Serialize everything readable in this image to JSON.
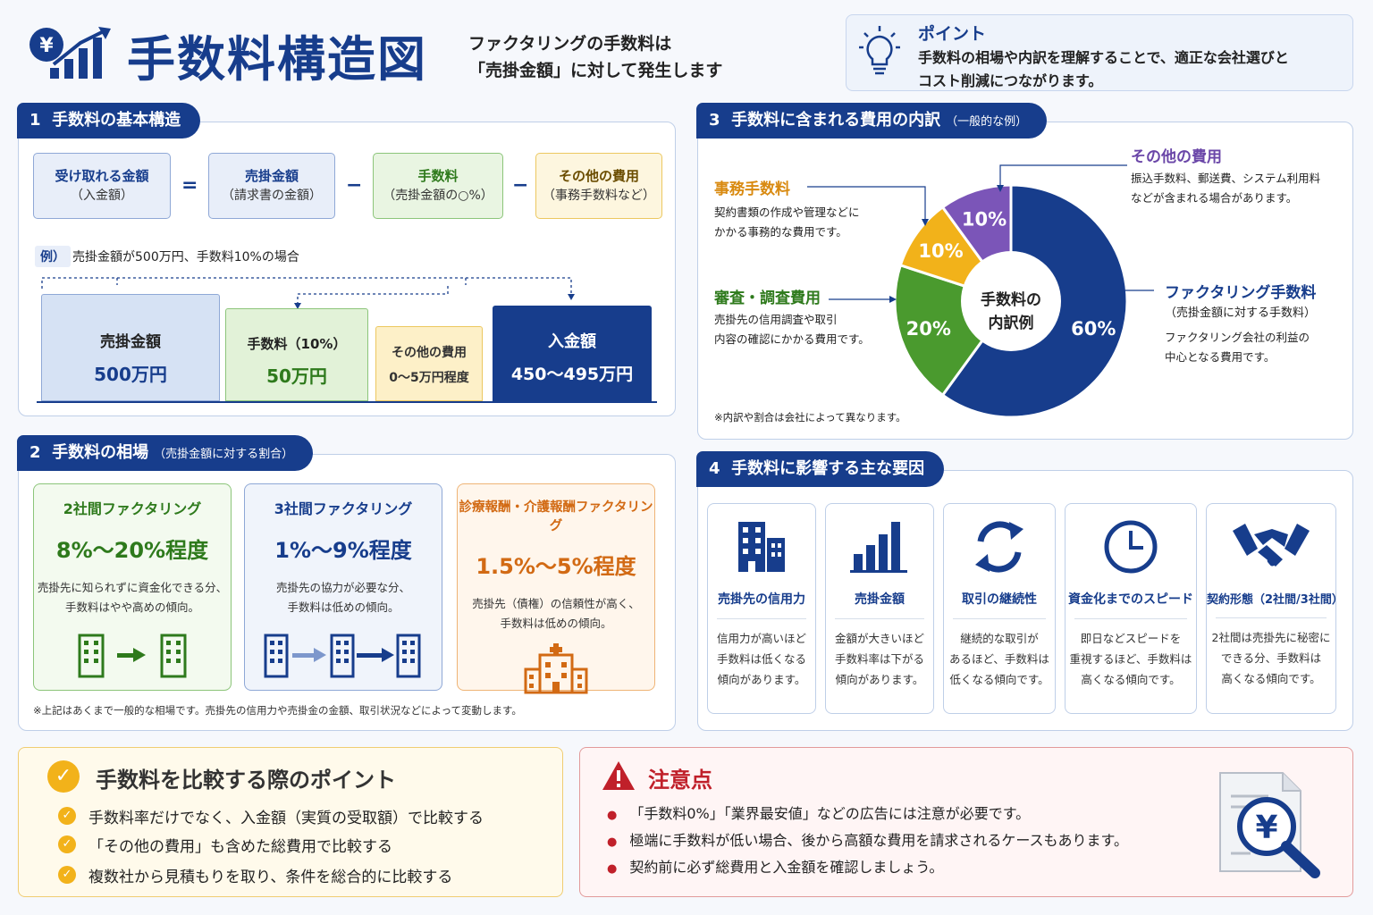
{
  "header": {
    "title": "手数料構造図",
    "subtitle_line1": "ファクタリングの手数料は",
    "subtitle_line2": "「売掛金額」に対して発生します"
  },
  "point": {
    "title": "ポイント",
    "line1": "手数料の相場や内訳を理解することで、適正な会社選びと",
    "line2": "コスト削減につながります。"
  },
  "s1": {
    "num": "1",
    "title": "手数料の基本構造",
    "boxes": [
      {
        "l1": "受け取れる金額",
        "l2": "（入金額）"
      },
      {
        "l1": "売掛金額",
        "l2": "（請求書の金額）"
      },
      {
        "l1": "手数料",
        "l2": "（売掛金額の○%）"
      },
      {
        "l1": "その他の費用",
        "l2": "（事務手数料など）"
      }
    ],
    "ops": [
      "=",
      "−",
      "−"
    ],
    "ex_tag": "例）",
    "example": "売掛金額が500万円、手数料10%の場合",
    "bars": [
      {
        "label": "売掛金額",
        "value": "500万円"
      },
      {
        "label": "手数料（10%）",
        "value": "50万円"
      },
      {
        "label": "その他の費用",
        "value": "0〜5万円程度"
      },
      {
        "label": "入金額",
        "value": "450〜495万円"
      }
    ]
  },
  "s2": {
    "num": "2",
    "title": "手数料の相場",
    "sub": "（売掛金額に対する割合）",
    "cards": [
      {
        "title": "2社間ファクタリング",
        "rate": "8%〜20%程度",
        "d1": "売掛先に知られずに資金化できる分、",
        "d2": "手数料はやや高めの傾向。"
      },
      {
        "title": "3社間ファクタリング",
        "rate": "1%〜9%程度",
        "d1": "売掛先の協力が必要な分、",
        "d2": "手数料は低めの傾向。"
      },
      {
        "title": "診療報酬・介護報酬ファクタリング",
        "rate": "1.5%〜5%程度",
        "d1": "売掛先（債権）の信頼性が高く、",
        "d2": "手数料は低めの傾向。"
      }
    ],
    "note": "※上記はあくまで一般的な相場です。売掛先の信用力や売掛金の金額、取引状況などによって変動します。"
  },
  "s3": {
    "num": "3",
    "title": "手数料に含まれる費用の内訳",
    "sub": "（一般的な例）",
    "center1": "手数料の",
    "center2": "内訳例",
    "items": [
      {
        "title": "事務手数料",
        "d1": "契約書類の作成や管理などに",
        "d2": "かかる事務的な費用です。"
      },
      {
        "title": "審査・調査費用",
        "d1": "売掛先の信用調査や取引",
        "d2": "内容の確認にかかる費用です。"
      },
      {
        "title": "その他の費用",
        "d1": "振込手数料、郵送費、システム利用料",
        "d2": "などが含まれる場合があります。"
      },
      {
        "title": "ファクタリング手数料",
        "sub": "（売掛金額に対する手数料）",
        "d1": "ファクタリング会社の利益の",
        "d2": "中心となる費用です。"
      }
    ],
    "note": "※内訳や割合は会社によって異なります。"
  },
  "chart_data": {
    "type": "pie",
    "title": "手数料の内訳例",
    "labels": [
      "ファクタリング手数料",
      "審査・調査費用",
      "事務手数料",
      "その他の費用"
    ],
    "values": [
      60,
      20,
      10,
      10
    ],
    "display": [
      "60%",
      "20%",
      "10%",
      "10%"
    ],
    "colors": [
      "#173d8c",
      "#4a9a2e",
      "#f2b21a",
      "#7b55b8"
    ]
  },
  "s4": {
    "num": "4",
    "title": "手数料に影響する主な要因",
    "factors": [
      {
        "icon": "building-icon",
        "title": "売掛先の信用力",
        "d1": "信用力が高いほど",
        "d2": "手数料は低くなる",
        "d3": "傾向があります。"
      },
      {
        "icon": "bar-chart-icon",
        "title": "売掛金額",
        "d1": "金額が大きいほど",
        "d2": "手数料率は下がる",
        "d3": "傾向があります。"
      },
      {
        "icon": "cycle-icon",
        "title": "取引の継続性",
        "d1": "継続的な取引が",
        "d2": "あるほど、手数料は",
        "d3": "低くなる傾向です。"
      },
      {
        "icon": "clock-icon",
        "title": "資金化までのスピード",
        "d1": "即日などスピードを",
        "d2": "重視するほど、手数料は",
        "d3": "高くなる傾向です。"
      },
      {
        "icon": "handshake-icon",
        "title": "契約形態（2社間/3社間）",
        "d1": "2社間は売掛先に秘密に",
        "d2": "できる分、手数料は",
        "d3": "高くなる傾向です。"
      }
    ]
  },
  "compare": {
    "title": "手数料を比較する際のポイント",
    "items": [
      "手数料率だけでなく、入金額（実質の受取額）で比較する",
      "「その他の費用」も含めた総費用で比較する",
      "複数社から見積もりを取り、条件を総合的に比較する"
    ]
  },
  "caution": {
    "title": "注意点",
    "items": [
      "「手数料0%」「業界最安値」などの広告には注意が必要です。",
      "極端に手数料が低い場合、後から高額な費用を請求されるケースもあります。",
      "契約前に必ず総費用と入金額を確認しましょう。"
    ]
  },
  "icons": {
    "header": "yen-growth-icon",
    "point": "lightbulb-icon",
    "compare": "check-icon",
    "caution": "warning-icon",
    "document": "yen-document-search-icon"
  }
}
